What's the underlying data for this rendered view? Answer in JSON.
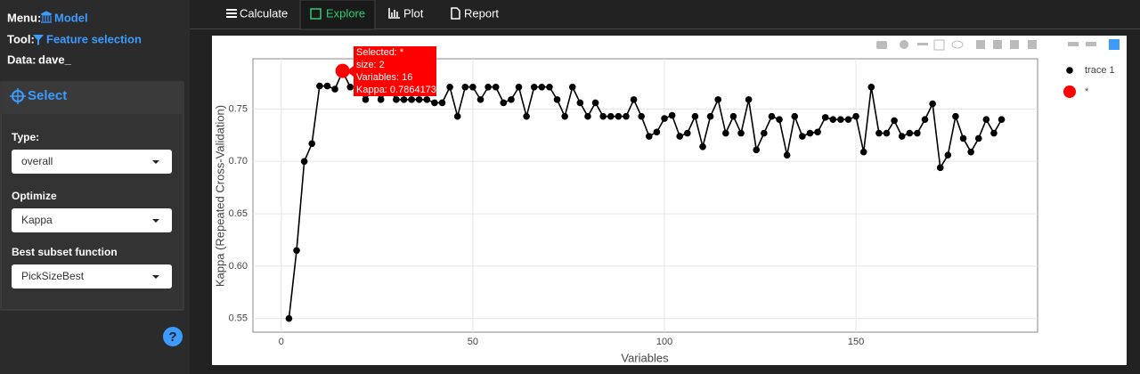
{
  "sidebar": {
    "menu": {
      "label": "Menu:",
      "value": "Model"
    },
    "tool": {
      "label": "Tool:",
      "value": "Feature selection"
    },
    "data": {
      "label": "Data:",
      "value": "dave_"
    },
    "panel_title": "Select",
    "fields": [
      {
        "label": "Type:",
        "value": "overall"
      },
      {
        "label": "Optimize",
        "value": "Kappa"
      },
      {
        "label": "Best subset function",
        "value": "PickSizeBest"
      }
    ],
    "help": "?"
  },
  "tabs": [
    {
      "label": "Calculate"
    },
    {
      "label": "Explore",
      "active": true
    },
    {
      "label": "Plot"
    },
    {
      "label": "Report"
    }
  ],
  "chart_data": {
    "type": "line",
    "x_label": "Variables",
    "y_label": "Kappa (Repeated Cross-Validation)",
    "x": [
      2,
      4,
      6,
      8,
      10,
      12,
      14,
      16,
      18,
      20,
      22,
      24,
      26,
      28,
      30,
      32,
      34,
      36,
      38,
      40,
      42,
      44,
      46,
      48,
      50,
      52,
      54,
      56,
      58,
      60,
      62,
      64,
      66,
      68,
      70,
      72,
      74,
      76,
      78,
      80,
      82,
      84,
      86,
      88,
      90,
      92,
      94,
      96,
      98,
      100,
      102,
      104,
      106,
      108,
      110,
      112,
      114,
      116,
      118,
      120,
      122,
      124,
      126,
      128,
      130,
      132,
      134,
      136,
      138,
      140,
      142,
      144,
      146,
      148,
      150,
      152,
      154,
      156,
      158,
      160,
      162,
      164,
      166,
      168,
      170,
      172,
      174,
      176,
      178,
      180,
      182,
      184,
      186,
      188
    ],
    "series": [
      {
        "name": "trace 1",
        "color": "#000000",
        "values": [
          0.55,
          0.615,
          0.7,
          0.717,
          0.772,
          0.772,
          0.769,
          0.786,
          0.771,
          0.771,
          0.759,
          0.771,
          0.759,
          0.771,
          0.759,
          0.759,
          0.759,
          0.759,
          0.759,
          0.756,
          0.756,
          0.771,
          0.743,
          0.771,
          0.771,
          0.759,
          0.771,
          0.771,
          0.756,
          0.759,
          0.771,
          0.743,
          0.771,
          0.771,
          0.771,
          0.759,
          0.743,
          0.771,
          0.756,
          0.743,
          0.756,
          0.743,
          0.743,
          0.743,
          0.743,
          0.759,
          0.743,
          0.724,
          0.728,
          0.741,
          0.744,
          0.724,
          0.727,
          0.743,
          0.714,
          0.743,
          0.759,
          0.727,
          0.743,
          0.727,
          0.759,
          0.711,
          0.727,
          0.743,
          0.74,
          0.706,
          0.743,
          0.724,
          0.727,
          0.728,
          0.742,
          0.74,
          0.74,
          0.74,
          0.743,
          0.709,
          0.771,
          0.727,
          0.727,
          0.739,
          0.724,
          0.727,
          0.727,
          0.74,
          0.755,
          0.694,
          0.706,
          0.743,
          0.722,
          0.709,
          0.722,
          0.74,
          0.727,
          0.74
        ]
      },
      {
        "name": "*",
        "color": "#ff0000",
        "x": [
          16
        ],
        "values": [
          0.7864173
        ]
      }
    ],
    "tooltip": [
      "Selected: *",
      "size: 2",
      "Variables:  16",
      "Kappa: 0.7864173"
    ],
    "xlim": [
      -7.4,
      197.4
    ],
    "ylim": [
      0.537,
      0.798
    ],
    "xticks": [
      0,
      50,
      100,
      150
    ],
    "yticks": [
      0.55,
      {
        "value": 0.6,
        "label": "0.60"
      },
      0.65,
      {
        "value": 0.7,
        "label": "0.70"
      },
      0.75
    ],
    "grid": true
  }
}
